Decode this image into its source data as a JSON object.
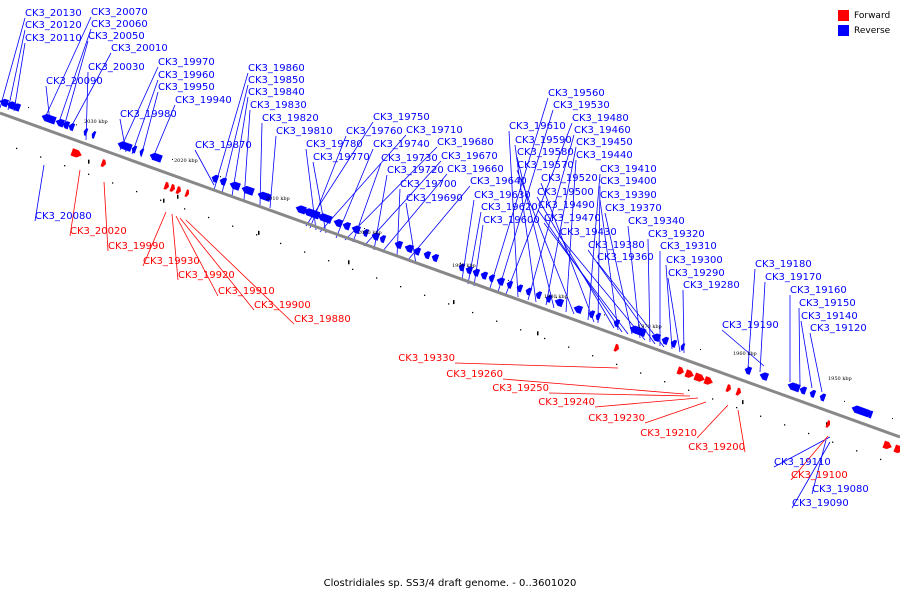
{
  "title": "Clostridiales sp. SS3/4 draft genome. - 0..3601020",
  "legend": {
    "forward": {
      "label": "Forward",
      "color": "#ff0000"
    },
    "reverse": {
      "label": "Reverse",
      "color": "#0000ff"
    }
  },
  "colors": {
    "backbone": "#888888",
    "forward": "#ff0000",
    "reverse": "#0000ff",
    "scale": "#000000"
  },
  "scale_labels": [
    "2030 kbp",
    "2020 kbp",
    "2010 kbp",
    "2000 kbp",
    "1990 kbp",
    "1980 kbp",
    "1970 kbp",
    "1960 kbp",
    "1950 kbp"
  ],
  "reverse_labels": [
    "CK3_20130",
    "CK3_20120",
    "CK3_20110",
    "CK3_20070",
    "CK3_20060",
    "CK3_20050",
    "CK3_20010",
    "CK3_20030",
    "CK3_20090",
    "CK3_19970",
    "CK3_19960",
    "CK3_19950",
    "CK3_19940",
    "CK3_19980",
    "CK3_19870",
    "CK3_19860",
    "CK3_19850",
    "CK3_19840",
    "CK3_19830",
    "CK3_19820",
    "CK3_19810",
    "CK3_19750",
    "CK3_19760",
    "CK3_19710",
    "CK3_19740",
    "CK3_19780",
    "CK3_19680",
    "CK3_19770",
    "CK3_19730",
    "CK3_19670",
    "CK3_19720",
    "CK3_19660",
    "CK3_19700",
    "CK3_19640",
    "CK3_19690",
    "CK3_19630",
    "CK3_19620",
    "CK3_19600",
    "CK3_19560",
    "CK3_19530",
    "CK3_19480",
    "CK3_19610",
    "CK3_19460",
    "CK3_19590",
    "CK3_19450",
    "CK3_19580",
    "CK3_19440",
    "CK3_19570",
    "CK3_19410",
    "CK3_19520",
    "CK3_19400",
    "CK3_19500",
    "CK3_19390",
    "CK3_19490",
    "CK3_19370",
    "CK3_19470",
    "CK3_19340",
    "CK3_19430",
    "CK3_19320",
    "CK3_19380",
    "CK3_19310",
    "CK3_19360",
    "CK3_19300",
    "CK3_19290",
    "CK3_19280",
    "CK3_19180",
    "CK3_19170",
    "CK3_19160",
    "CK3_19150",
    "CK3_19190",
    "CK3_19140",
    "CK3_19120",
    "CK3_20080",
    "CK3_19110",
    "CK3_19080",
    "CK3_19090"
  ],
  "forward_labels": [
    "CK3_20020",
    "CK3_19990",
    "CK3_19930",
    "CK3_19920",
    "CK3_19910",
    "CK3_19900",
    "CK3_19880",
    "CK3_19330",
    "CK3_19260",
    "CK3_19250",
    "CK3_19240",
    "CK3_19230",
    "CK3_19210",
    "CK3_19200",
    "CK3_19100"
  ]
}
